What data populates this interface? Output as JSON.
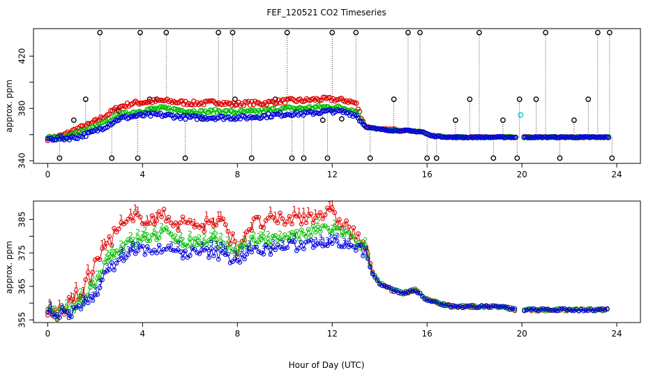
{
  "chart_data": [
    {
      "type": "scatter",
      "title": "FEF_120521  CO2 Timeseries",
      "ylabel": "approx. ppm",
      "xlabel": "",
      "xlim": [
        -0.6,
        25.0
      ],
      "ylim": [
        338,
        441
      ],
      "xticks": [
        0,
        4,
        8,
        12,
        16,
        20,
        24
      ],
      "yticks": [
        340,
        380,
        420
      ],
      "yticks_minor": [
        360,
        400
      ],
      "grid": false,
      "colors": {
        "raw": "#000000",
        "s1": "#e00000",
        "s2": "#00bb00",
        "s3": "#0000dd",
        "cal": "#00cccc"
      },
      "series_profile": {
        "x": [
          0,
          0.6,
          1.2,
          1.8,
          2.4,
          3.0,
          3.6,
          4.2,
          4.8,
          5.4,
          6.0,
          6.6,
          7.2,
          7.8,
          8.4,
          9.0,
          9.6,
          10.2,
          10.8,
          11.4,
          12.0,
          12.6,
          13.0,
          13.4,
          14.0,
          14.6,
          15.2,
          15.8,
          16.2,
          17.0,
          18.0,
          19.0,
          19.8,
          20.6,
          21.4,
          22.2,
          23.0,
          23.7
        ],
        "s1": [
          357,
          359,
          364,
          368,
          374,
          381,
          384,
          385,
          386,
          385,
          384,
          384,
          385,
          383,
          384,
          384,
          385,
          386,
          386,
          387,
          387,
          386,
          384,
          366,
          364,
          364,
          363,
          362,
          359,
          358,
          358,
          358,
          358,
          358,
          358,
          358,
          358,
          358
        ],
        "s2": [
          357,
          358,
          361,
          364,
          369,
          375,
          377,
          379,
          380,
          379,
          378,
          377,
          378,
          377,
          377,
          378,
          379,
          380,
          380,
          381,
          381,
          380,
          378,
          366,
          364,
          363,
          363,
          362,
          359,
          358,
          358,
          358,
          358,
          358,
          358,
          358,
          358,
          358
        ],
        "s3": [
          357,
          357,
          358,
          361,
          366,
          372,
          374,
          375,
          375,
          374,
          373,
          373,
          373,
          373,
          373,
          374,
          375,
          376,
          376,
          377,
          378,
          377,
          375,
          366,
          364,
          363,
          363,
          362,
          359,
          358,
          358,
          358,
          358,
          358,
          358,
          358,
          358,
          358
        ]
      },
      "raw_spikes": {
        "x": [
          0.5,
          1.1,
          1.6,
          2.2,
          2.7,
          3.0,
          3.8,
          3.9,
          4.3,
          4.6,
          5.0,
          5.8,
          6.5,
          7.2,
          7.8,
          7.9,
          8.6,
          9.6,
          10.1,
          10.3,
          10.8,
          11.6,
          11.8,
          12.0,
          12.4,
          13.0,
          13.6,
          14.6,
          15.2,
          15.7,
          16.0,
          16.4,
          17.2,
          17.8,
          18.2,
          18.8,
          19.2,
          19.8,
          19.9,
          20.6,
          21.0,
          21.6,
          22.2,
          22.8,
          23.2,
          23.7,
          23.8
        ],
        "y": [
          342,
          371,
          387,
          438,
          342,
          378,
          342,
          438,
          387,
          387,
          438,
          342,
          372,
          438,
          438,
          387,
          342,
          387,
          438,
          342,
          342,
          371,
          342,
          438,
          372,
          438,
          342,
          387,
          438,
          438,
          342,
          342,
          371,
          387,
          438,
          342,
          371,
          342,
          387,
          387,
          438,
          342,
          371,
          387,
          438,
          438,
          342
        ]
      },
      "cal_points": {
        "x": [
          19.95
        ],
        "y": [
          375
        ]
      }
    },
    {
      "type": "scatter",
      "title": "",
      "ylabel": "approx. ppm",
      "xlabel": "Hour of Day (UTC)",
      "xlim": [
        -0.6,
        25.0
      ],
      "ylim": [
        354.2,
        390.5
      ],
      "xticks": [
        0,
        4,
        8,
        12,
        16,
        20,
        24
      ],
      "yticks": [
        355,
        365,
        375,
        385
      ],
      "yticks_minor": [
        360,
        370,
        380
      ],
      "grid": false,
      "colors": {
        "s1": "#e00000",
        "s2": "#00bb00",
        "s3": "#0000dd"
      },
      "markers": {
        "s1": "1",
        "s2": "2",
        "s3": "3"
      },
      "series_profile": {
        "x": [
          0,
          0.5,
          1.0,
          1.5,
          2.0,
          2.5,
          3.0,
          3.5,
          4.0,
          4.5,
          5.0,
          5.5,
          6.0,
          6.5,
          7.0,
          7.5,
          8.0,
          8.5,
          9.0,
          9.5,
          10.0,
          10.5,
          11.0,
          11.5,
          12.0,
          12.5,
          13.0,
          13.4,
          13.7,
          14.0,
          14.5,
          15.0,
          15.5,
          16.0,
          16.5,
          17.0,
          18.0,
          19.0,
          19.8,
          20.6,
          21.4,
          22.2,
          23.0,
          23.7
        ],
        "s1": [
          357,
          357,
          360,
          364,
          371,
          378,
          382,
          384,
          386,
          385,
          386,
          384,
          384,
          383,
          384,
          383,
          376,
          383,
          384,
          384,
          385,
          385,
          386,
          387,
          386,
          384,
          380,
          377,
          369,
          366,
          364,
          363,
          364,
          361,
          360,
          359,
          359,
          359,
          358,
          358,
          358,
          358,
          358,
          358
        ],
        "s2": [
          357,
          357,
          358,
          361,
          366,
          373,
          376,
          378,
          379,
          380,
          381,
          379,
          378,
          378,
          379,
          377,
          374,
          378,
          379,
          379,
          380,
          380,
          381,
          382,
          382,
          381,
          378,
          376,
          369,
          366,
          364,
          363,
          364,
          361,
          360,
          359,
          359,
          359,
          358,
          358,
          358,
          358,
          358,
          358
        ],
        "s3": [
          357,
          357,
          357,
          359,
          363,
          369,
          373,
          375,
          376,
          376,
          376,
          375,
          375,
          375,
          375,
          374,
          373,
          375,
          376,
          376,
          377,
          377,
          378,
          378,
          379,
          378,
          377,
          375,
          369,
          366,
          364,
          363,
          364,
          361,
          360,
          359,
          359,
          359,
          358,
          358,
          358,
          358,
          358,
          358
        ]
      }
    }
  ]
}
